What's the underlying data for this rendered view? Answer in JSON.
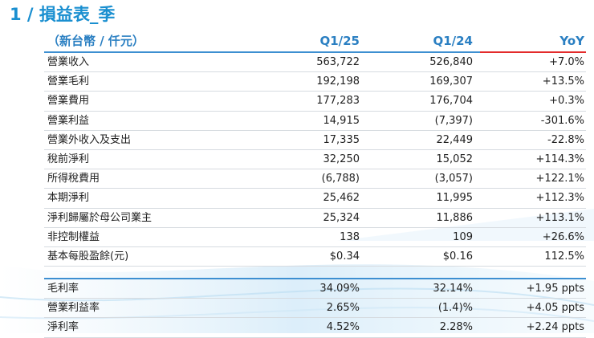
{
  "page": {
    "title": "1 / 損益表_季"
  },
  "table": {
    "header": {
      "unit": "（新台幣 / 仟元）",
      "col1": "Q1/25",
      "col2": "Q1/24",
      "col3": "YoY"
    },
    "rows": [
      {
        "label": "營業收入",
        "q1_25": "563,722",
        "q1_24": "526,840",
        "yoy": "+7.0%"
      },
      {
        "label": "營業毛利",
        "q1_25": "192,198",
        "q1_24": "169,307",
        "yoy": "+13.5%"
      },
      {
        "label": "營業費用",
        "q1_25": "177,283",
        "q1_24": "176,704",
        "yoy": "+0.3%"
      },
      {
        "label": "營業利益",
        "q1_25": "14,915",
        "q1_24": "(7,397)",
        "yoy": "-301.6%"
      },
      {
        "label": "營業外收入及支出",
        "q1_25": "17,335",
        "q1_24": "22,449",
        "yoy": "-22.8%"
      },
      {
        "label": "稅前淨利",
        "q1_25": "32,250",
        "q1_24": "15,052",
        "yoy": "+114.3%"
      },
      {
        "label": "所得稅費用",
        "q1_25": "(6,788)",
        "q1_24": "(3,057)",
        "yoy": "+122.1%"
      },
      {
        "label": "本期淨利",
        "q1_25": "25,462",
        "q1_24": "11,995",
        "yoy": "+112.3%"
      },
      {
        "label": "淨利歸屬於母公司業主",
        "q1_25": "25,324",
        "q1_24": "11,886",
        "yoy": "+113.1%"
      },
      {
        "label": "非控制權益",
        "q1_25": "138",
        "q1_24": "109",
        "yoy": "+26.6%"
      },
      {
        "label": "基本每股盈餘(元)",
        "q1_25": "$0.34",
        "q1_24": "$0.16",
        "yoy": "112.5%"
      }
    ],
    "ratios": [
      {
        "label": "毛利率",
        "q1_25": "34.09%",
        "q1_24": "32.14%",
        "yoy": "+1.95 ppts"
      },
      {
        "label": "營業利益率",
        "q1_25": "2.65%",
        "q1_24": "(1.4)%",
        "yoy": "+4.05 ppts"
      },
      {
        "label": "淨利率",
        "q1_25": "4.52%",
        "q1_24": "2.28%",
        "yoy": "+2.24 ppts"
      }
    ]
  }
}
